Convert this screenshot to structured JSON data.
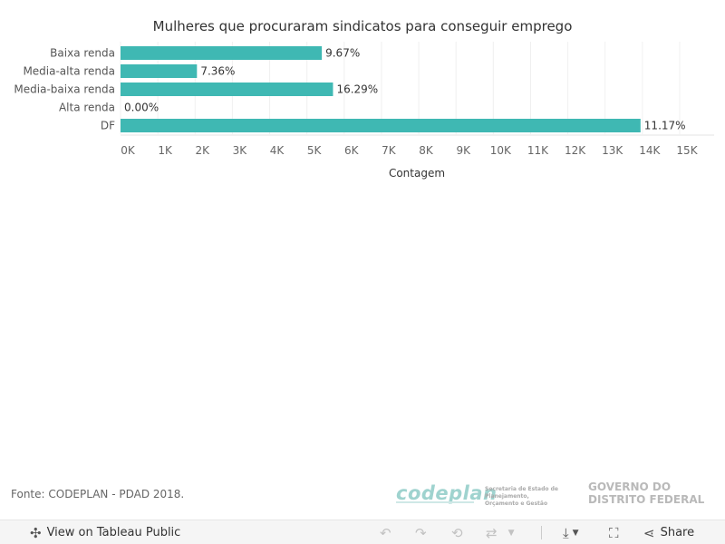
{
  "chart_data": {
    "type": "bar",
    "orientation": "horizontal",
    "title": "Mulheres que procuraram sindicatos para conseguir emprego",
    "xlabel": "Contagem",
    "ylabel": "",
    "categories": [
      "Baixa renda",
      "Media-alta renda",
      "Media-baixa renda",
      "Alta renda",
      "DF"
    ],
    "values": [
      5400,
      2050,
      5700,
      0,
      13950
    ],
    "data_labels": [
      "9.67%",
      "7.36%",
      "16.29%",
      "0.00%",
      "11.17%"
    ],
    "xlim": [
      0,
      15000
    ],
    "x_ticks": [
      0,
      1000,
      2000,
      3000,
      4000,
      5000,
      6000,
      7000,
      8000,
      9000,
      10000,
      11000,
      12000,
      13000,
      14000,
      15000
    ],
    "x_tick_labels": [
      "0K",
      "1K",
      "2K",
      "3K",
      "4K",
      "5K",
      "6K",
      "7K",
      "8K",
      "9K",
      "10K",
      "11K",
      "12K",
      "13K",
      "14K",
      "15K"
    ],
    "bar_color": "#3fb8b3",
    "grid": true
  },
  "footer": {
    "source": "Fonte: CODEPLAN - PDAD 2018.",
    "logo_codeplan": "codeplan",
    "logo_secretaria_line1": "Secretaria de Estado de Planejamento,",
    "logo_secretaria_line2": "Orçamento e Gestão",
    "logo_gov_line1": "GOVERNO DO",
    "logo_gov_line2": "DISTRITO FEDERAL"
  },
  "toolbar": {
    "view_label": "View on Tableau Public",
    "share_label": "Share"
  }
}
